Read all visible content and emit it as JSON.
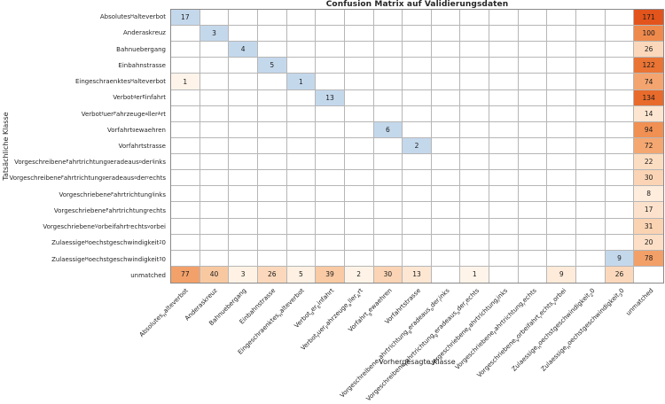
{
  "chart_data": {
    "type": "heatmap",
    "title": "Confusion Matrix auf Validierungsdaten",
    "xlabel": "Vorhergesagte Klasse",
    "ylabel": "Tatsächliche Klasse",
    "classes": [
      "Absolutes_{H}alteverbot",
      "Anderaskreuz",
      "Bahnuebergang",
      "Einbahnstrasse",
      "Eingeschraenktes_{H}alteverbot",
      "Verbot_{d}er_{E}infahrt",
      "Verbot_{f}uer_{F}ahrzeuge_{a}ller_{A}rt",
      "Vorfahrt_{g}ewaehren",
      "Vorfahrtstrasse",
      "Vorgeschreibene_{F}ahrtrichtung_{g}eradeaus_{o}der_{l}inks",
      "Vorgeschreibene_{F}ahrtrichtung_{g}eradeaus_{o}der_{r}echts",
      "Vorgeschriebene_{F}ahrtrichtung_{l}inks",
      "Vorgeschriebene_{F}ahrtrichtung_{r}echts",
      "Vorgeschriebene_{V}orbeifahrt_{r}echts_{v}orbei",
      "Zulaessige_{H}oechstgeschwindigkeit_{2}0",
      "Zulaessige_{H}oechstgeschwindigkeit_{3}0",
      "unmatched"
    ],
    "matrix": [
      [
        17,
        0,
        0,
        0,
        0,
        0,
        0,
        0,
        0,
        0,
        0,
        0,
        0,
        0,
        0,
        0,
        171
      ],
      [
        0,
        3,
        0,
        0,
        0,
        0,
        0,
        0,
        0,
        0,
        0,
        0,
        0,
        0,
        0,
        0,
        100
      ],
      [
        0,
        0,
        4,
        0,
        0,
        0,
        0,
        0,
        0,
        0,
        0,
        0,
        0,
        0,
        0,
        0,
        26
      ],
      [
        0,
        0,
        0,
        5,
        0,
        0,
        0,
        0,
        0,
        0,
        0,
        0,
        0,
        0,
        0,
        0,
        122
      ],
      [
        1,
        0,
        0,
        0,
        1,
        0,
        0,
        0,
        0,
        0,
        0,
        0,
        0,
        0,
        0,
        0,
        74
      ],
      [
        0,
        0,
        0,
        0,
        0,
        13,
        0,
        0,
        0,
        0,
        0,
        0,
        0,
        0,
        0,
        0,
        134
      ],
      [
        0,
        0,
        0,
        0,
        0,
        0,
        0,
        0,
        0,
        0,
        0,
        0,
        0,
        0,
        0,
        0,
        14
      ],
      [
        0,
        0,
        0,
        0,
        0,
        0,
        0,
        6,
        0,
        0,
        0,
        0,
        0,
        0,
        0,
        0,
        94
      ],
      [
        0,
        0,
        0,
        0,
        0,
        0,
        0,
        0,
        2,
        0,
        0,
        0,
        0,
        0,
        0,
        0,
        72
      ],
      [
        0,
        0,
        0,
        0,
        0,
        0,
        0,
        0,
        0,
        0,
        0,
        0,
        0,
        0,
        0,
        0,
        22
      ],
      [
        0,
        0,
        0,
        0,
        0,
        0,
        0,
        0,
        0,
        0,
        0,
        0,
        0,
        0,
        0,
        0,
        30
      ],
      [
        0,
        0,
        0,
        0,
        0,
        0,
        0,
        0,
        0,
        0,
        0,
        0,
        0,
        0,
        0,
        0,
        8
      ],
      [
        0,
        0,
        0,
        0,
        0,
        0,
        0,
        0,
        0,
        0,
        0,
        0,
        0,
        0,
        0,
        0,
        17
      ],
      [
        0,
        0,
        0,
        0,
        0,
        0,
        0,
        0,
        0,
        0,
        0,
        0,
        0,
        0,
        0,
        0,
        31
      ],
      [
        0,
        0,
        0,
        0,
        0,
        0,
        0,
        0,
        0,
        0,
        0,
        0,
        0,
        0,
        0,
        0,
        20
      ],
      [
        0,
        0,
        0,
        0,
        0,
        0,
        0,
        0,
        0,
        0,
        0,
        0,
        0,
        0,
        0,
        9,
        78
      ],
      [
        77,
        40,
        3,
        26,
        5,
        39,
        2,
        30,
        13,
        0,
        1,
        0,
        0,
        9,
        0,
        26,
        0
      ]
    ],
    "vmax": 171,
    "colors": {
      "diagonal_blue": "#c4d8ec",
      "orange_stops": [
        [
          0,
          "#fff5eb"
        ],
        [
          0.25,
          "#f8c69c"
        ],
        [
          0.5,
          "#f2985d"
        ],
        [
          0.75,
          "#e96e2d"
        ],
        [
          1,
          "#e2541b"
        ]
      ],
      "gridline": "#b6b6b6",
      "frame": "#8a8a8a"
    },
    "layout": {
      "legend": "none",
      "grid": "on",
      "x_tick_rotation_deg": 45
    }
  }
}
